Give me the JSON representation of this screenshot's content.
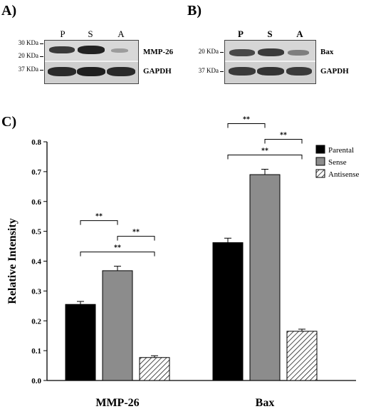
{
  "panel_a": {
    "label": "A)",
    "lanes": [
      "P",
      "S",
      "A"
    ],
    "markers": [
      "30 KDa",
      "20 KDa",
      "37 KDa"
    ],
    "proteins": [
      "MMP-26",
      "GAPDH"
    ]
  },
  "panel_b": {
    "label": "B)",
    "lanes": [
      "P",
      "S",
      "A"
    ],
    "markers": [
      "20 KDa",
      "37 KDa"
    ],
    "proteins": [
      "Bax",
      "GAPDH"
    ]
  },
  "panel_c": {
    "label": "C)"
  },
  "chart_data": {
    "type": "bar",
    "categories": [
      "MMP-26",
      "Bax"
    ],
    "series": [
      {
        "name": "Parental",
        "values": [
          0.255,
          0.462
        ],
        "errors": [
          0.01,
          0.015
        ],
        "color": "#000000",
        "pattern": "solid"
      },
      {
        "name": "Sense",
        "values": [
          0.368,
          0.69
        ],
        "errors": [
          0.015,
          0.018
        ],
        "color": "#8c8c8c",
        "pattern": "solid"
      },
      {
        "name": "Antisense",
        "values": [
          0.077,
          0.165
        ],
        "errors": [
          0.006,
          0.007
        ],
        "color": "#ffffff",
        "pattern": "hatch"
      }
    ],
    "ylabel": "Relative Intensity",
    "ylim": [
      0,
      0.8
    ],
    "yticks": [
      "0.0",
      "0.1",
      "0.2",
      "0.3",
      "0.4",
      "0.5",
      "0.6",
      "0.7",
      "0.8"
    ],
    "significance": [
      {
        "category": "MMP-26",
        "from": "Parental",
        "to": "Sense",
        "label": "**"
      },
      {
        "category": "MMP-26",
        "from": "Sense",
        "to": "Antisense",
        "label": "**"
      },
      {
        "category": "MMP-26",
        "from": "Parental",
        "to": "Antisense",
        "label": "**"
      },
      {
        "category": "Bax",
        "from": "Parental",
        "to": "Sense",
        "label": "**"
      },
      {
        "category": "Bax",
        "from": "Sense",
        "to": "Antisense",
        "label": "**"
      },
      {
        "category": "Bax",
        "from": "Parental",
        "to": "Antisense",
        "label": "**"
      }
    ],
    "legend_position": "top-right",
    "grid": false
  }
}
